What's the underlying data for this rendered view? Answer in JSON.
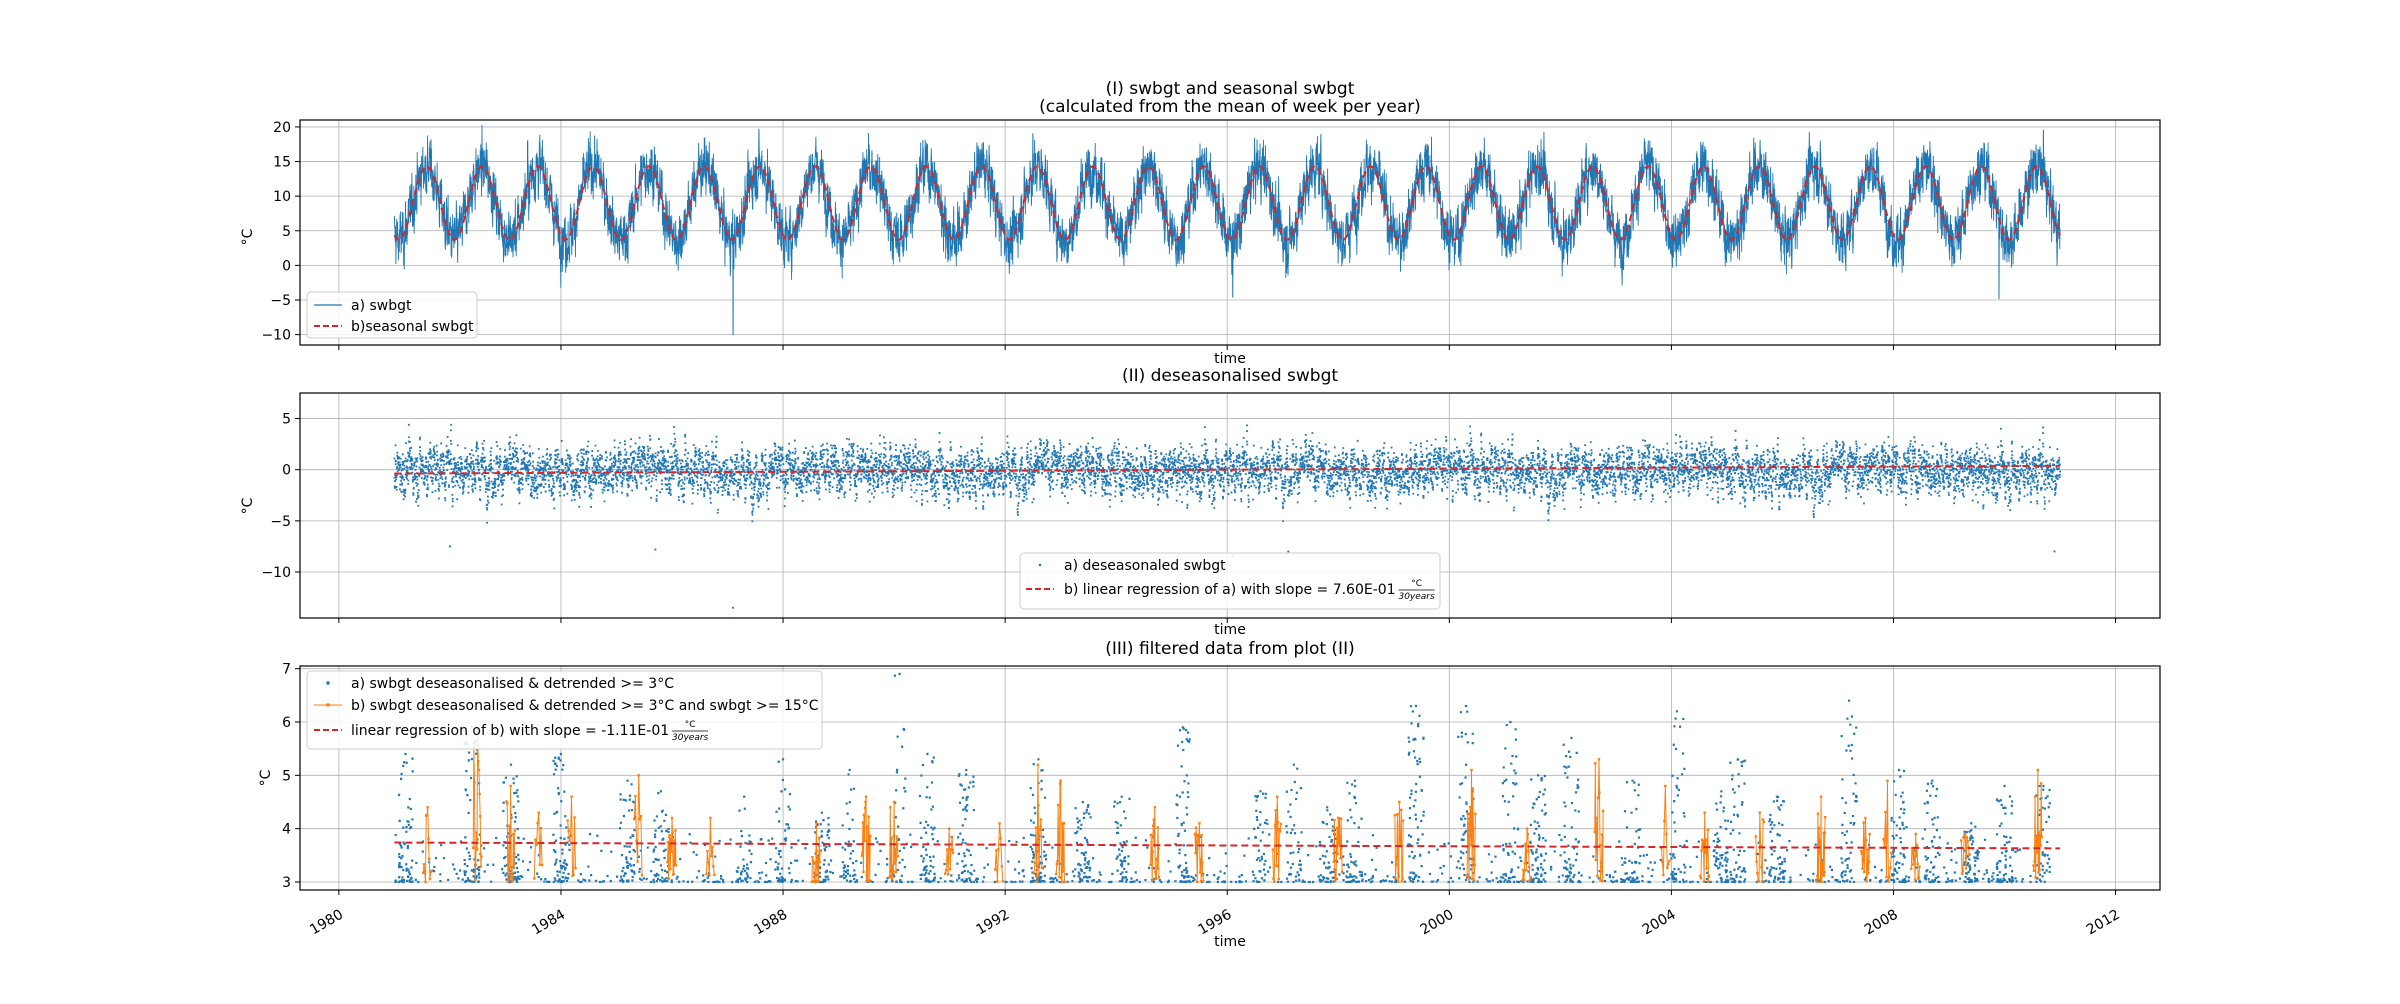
{
  "chart_data": [
    {
      "type": "line",
      "title": "(I) swbgt and seasonal swbgt",
      "subtitle": "(calculated from the mean of week per year)",
      "xlabel": "time",
      "ylabel": "°C",
      "ylim": [
        -11.5,
        21
      ],
      "yticks": [
        -10,
        -5,
        0,
        5,
        10,
        15,
        20
      ],
      "xticks_shown": false,
      "grid": true,
      "legend_position": "lower-left",
      "colors": {
        "raw": "#1f77b4",
        "seasonal": "#d62728"
      },
      "series": [
        {
          "name": "a) swbgt",
          "style": "thin solid line",
          "seasonal_range": [
            3.5,
            14.5
          ],
          "typical_range": [
            -2,
            17
          ],
          "observed_min": -10,
          "observed_max": 19.5,
          "extremes": [
            [
              1987.1,
              -10
            ],
            [
              1996.1,
              -4.6
            ],
            [
              2009.9,
              -4.8
            ],
            [
              2010.7,
              19.5
            ],
            [
              1992.5,
              19
            ],
            [
              1983.4,
              18
            ]
          ]
        },
        {
          "name": "b)seasonal swbgt",
          "style": "dashed line",
          "min": 3.7,
          "max": 14.3,
          "annual_period_years": 1
        }
      ]
    },
    {
      "type": "scatter",
      "title": "(II) deseasonalised swbgt",
      "xlabel": "time",
      "ylabel": "°C",
      "ylim": [
        -14.5,
        7.5
      ],
      "yticks": [
        -10,
        -5,
        0,
        5
      ],
      "xticks_shown": false,
      "grid": true,
      "legend_position": "bottom-center",
      "colors": {
        "points": "#1f77b4",
        "trend": "#d62728"
      },
      "series": [
        {
          "name": "a) deseasonaled swbgt",
          "marker": "small dots",
          "typical_range": [
            -4,
            4
          ],
          "observed_min": -13.5,
          "observed_max": 6.7,
          "extremes": [
            [
              1987.1,
              -13.5
            ],
            [
              1996.1,
              -8.4
            ],
            [
              1997.1,
              -8
            ],
            [
              1985.7,
              -7.8
            ],
            [
              1982.0,
              -7.5
            ],
            [
              2010.9,
              -8
            ]
          ]
        },
        {
          "name": "b) linear regression of a) with slope = 7.60E-01",
          "slope_unit_numerator": "°C",
          "slope_unit_denominator": "30years",
          "style": "dashed line",
          "x": [
            1981.0,
            2011.0
          ],
          "y": [
            -0.38,
            0.38
          ]
        }
      ]
    },
    {
      "type": "scatter",
      "title": "(III) filtered data from plot (II)",
      "xlabel": "time",
      "ylabel": "°C",
      "xlim": [
        1979.3,
        2012.8
      ],
      "ylim": [
        2.85,
        7.05
      ],
      "yticks": [
        3,
        4,
        5,
        6,
        7
      ],
      "xticks": [
        1980,
        1984,
        1988,
        1992,
        1996,
        2000,
        2004,
        2008,
        2012
      ],
      "grid": true,
      "legend_position": "upper-left",
      "colors": {
        "a": "#1f77b4",
        "b": "#ff7f0e",
        "trend": "#d62728"
      },
      "series": [
        {
          "name": "a) swbgt deseasonalised & detrended >= 3°C",
          "marker": "dots",
          "threshold": 3,
          "peaks": [
            [
              1981.2,
              5.4
            ],
            [
              1982.4,
              5.9
            ],
            [
              1983.1,
              5.2
            ],
            [
              1984.0,
              5.4
            ],
            [
              1985.2,
              4.9
            ],
            [
              1985.8,
              4.7
            ],
            [
              1987.3,
              4.6
            ],
            [
              1988.0,
              5.3
            ],
            [
              1988.7,
              4.3
            ],
            [
              1989.2,
              5.1
            ],
            [
              1990.1,
              6.9
            ],
            [
              1990.6,
              5.4
            ],
            [
              1991.3,
              5.1
            ],
            [
              1992.6,
              5.3
            ],
            [
              1993.4,
              4.5
            ],
            [
              1994.1,
              4.6
            ],
            [
              1995.2,
              5.9
            ],
            [
              1996.6,
              4.7
            ],
            [
              1997.2,
              5.2
            ],
            [
              1997.8,
              4.4
            ],
            [
              1998.3,
              4.9
            ],
            [
              1999.4,
              6.3
            ],
            [
              2000.3,
              6.3
            ],
            [
              2001.1,
              6.0
            ],
            [
              2001.6,
              5.0
            ],
            [
              2002.2,
              5.7
            ],
            [
              2003.3,
              4.9
            ],
            [
              2004.1,
              6.2
            ],
            [
              2004.9,
              4.7
            ],
            [
              2005.2,
              5.3
            ],
            [
              2005.9,
              4.6
            ],
            [
              2007.2,
              6.4
            ],
            [
              2008.1,
              5.1
            ],
            [
              2008.7,
              4.9
            ],
            [
              2009.4,
              4.1
            ],
            [
              2010.0,
              4.8
            ],
            [
              2010.7,
              4.8
            ]
          ]
        },
        {
          "name": "b) swbgt deseasonalised & detrended >= 3°C and swbgt >= 15°C",
          "marker": "dots connected by thin line",
          "peaks": [
            [
              1981.6,
              4.4
            ],
            [
              1982.5,
              5.8
            ],
            [
              1983.1,
              4.8
            ],
            [
              1983.6,
              4.3
            ],
            [
              1984.2,
              4.6
            ],
            [
              1985.4,
              5.0
            ],
            [
              1986.0,
              4.2
            ],
            [
              1986.7,
              4.2
            ],
            [
              1988.6,
              4.1
            ],
            [
              1989.5,
              4.6
            ],
            [
              1990.0,
              4.5
            ],
            [
              1991.0,
              4.0
            ],
            [
              1991.9,
              4.1
            ],
            [
              1992.6,
              5.2
            ],
            [
              1993.0,
              4.9
            ],
            [
              1994.7,
              4.4
            ],
            [
              1995.5,
              4.1
            ],
            [
              1996.9,
              4.6
            ],
            [
              1998.0,
              4.2
            ],
            [
              1999.1,
              4.5
            ],
            [
              2000.4,
              5.1
            ],
            [
              2001.4,
              4.0
            ],
            [
              2002.7,
              5.3
            ],
            [
              2003.9,
              4.8
            ],
            [
              2004.6,
              4.3
            ],
            [
              2005.6,
              4.3
            ],
            [
              2006.7,
              4.6
            ],
            [
              2007.5,
              4.2
            ],
            [
              2007.9,
              4.9
            ],
            [
              2008.4,
              3.9
            ],
            [
              2009.3,
              3.9
            ],
            [
              2010.6,
              5.1
            ]
          ]
        },
        {
          "name": "linear regression of b) with slope = -1.11E-01",
          "slope_unit_numerator": "°C",
          "slope_unit_denominator": "30years",
          "style": "dashed line",
          "x": [
            1981.0,
            2011.0
          ],
          "y": [
            3.74,
            3.63
          ]
        }
      ]
    }
  ]
}
